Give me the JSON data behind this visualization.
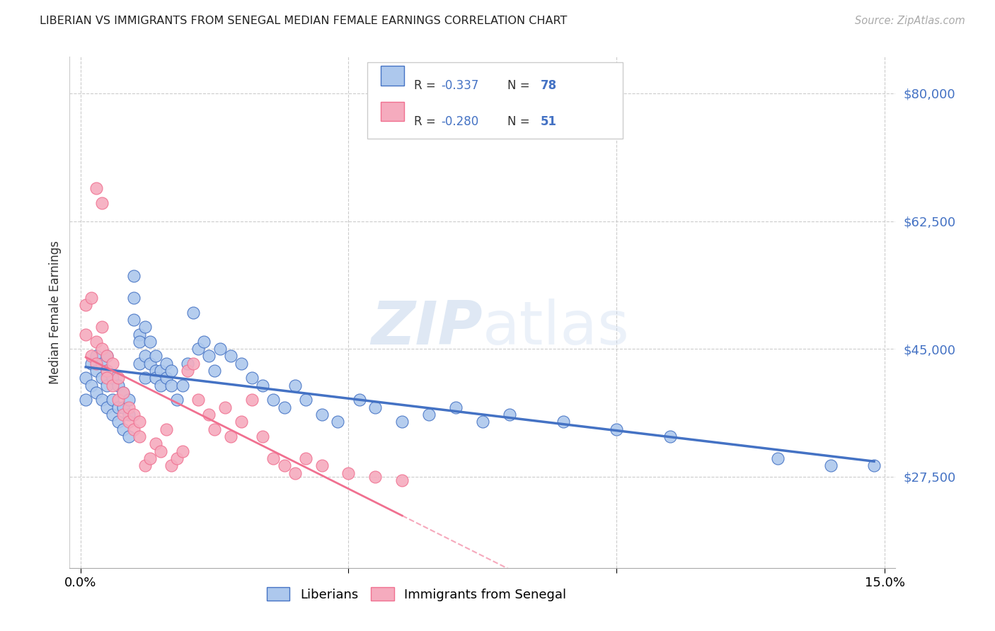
{
  "title": "LIBERIAN VS IMMIGRANTS FROM SENEGAL MEDIAN FEMALE EARNINGS CORRELATION CHART",
  "source": "Source: ZipAtlas.com",
  "ylabel": "Median Female Earnings",
  "xlim": [
    -0.002,
    0.152
  ],
  "ylim": [
    15000,
    85000
  ],
  "yticks": [
    27500,
    45000,
    62500,
    80000
  ],
  "ytick_labels": [
    "$27,500",
    "$45,000",
    "$62,500",
    "$80,000"
  ],
  "xticks": [
    0.0,
    0.05,
    0.1,
    0.15
  ],
  "xtick_labels": [
    "0.0%",
    "",
    "",
    "15.0%"
  ],
  "legend_labels": [
    "Liberians",
    "Immigrants from Senegal"
  ],
  "liberian_color": "#adc8ed",
  "senegal_color": "#f5abbe",
  "liberian_line_color": "#4472c4",
  "senegal_line_color": "#f07090",
  "R_liberian": "-0.337",
  "N_liberian": "78",
  "R_senegal": "-0.280",
  "N_senegal": "51",
  "watermark_zip": "ZIP",
  "watermark_atlas": "atlas",
  "liberian_x": [
    0.001,
    0.001,
    0.002,
    0.002,
    0.003,
    0.003,
    0.003,
    0.004,
    0.004,
    0.004,
    0.005,
    0.005,
    0.005,
    0.005,
    0.006,
    0.006,
    0.006,
    0.007,
    0.007,
    0.007,
    0.008,
    0.008,
    0.008,
    0.009,
    0.009,
    0.009,
    0.01,
    0.01,
    0.01,
    0.011,
    0.011,
    0.011,
    0.012,
    0.012,
    0.012,
    0.013,
    0.013,
    0.014,
    0.014,
    0.014,
    0.015,
    0.015,
    0.016,
    0.016,
    0.017,
    0.017,
    0.018,
    0.019,
    0.02,
    0.021,
    0.022,
    0.023,
    0.024,
    0.025,
    0.026,
    0.028,
    0.03,
    0.032,
    0.034,
    0.036,
    0.038,
    0.04,
    0.042,
    0.045,
    0.048,
    0.052,
    0.055,
    0.06,
    0.065,
    0.07,
    0.075,
    0.08,
    0.09,
    0.1,
    0.11,
    0.13,
    0.14,
    0.148
  ],
  "liberian_y": [
    41000,
    38000,
    43000,
    40000,
    39000,
    44000,
    42000,
    38000,
    41000,
    43000,
    37000,
    40000,
    42000,
    44000,
    36000,
    38000,
    41000,
    35000,
    37000,
    40000,
    34000,
    37000,
    39000,
    33000,
    36000,
    38000,
    55000,
    52000,
    49000,
    47000,
    43000,
    46000,
    44000,
    41000,
    48000,
    43000,
    46000,
    42000,
    44000,
    41000,
    40000,
    42000,
    43000,
    41000,
    40000,
    42000,
    38000,
    40000,
    43000,
    50000,
    45000,
    46000,
    44000,
    42000,
    45000,
    44000,
    43000,
    41000,
    40000,
    38000,
    37000,
    40000,
    38000,
    36000,
    35000,
    38000,
    37000,
    35000,
    36000,
    37000,
    35000,
    36000,
    35000,
    34000,
    33000,
    30000,
    29000,
    29000
  ],
  "senegal_x": [
    0.001,
    0.001,
    0.002,
    0.002,
    0.003,
    0.003,
    0.003,
    0.004,
    0.004,
    0.004,
    0.005,
    0.005,
    0.005,
    0.006,
    0.006,
    0.007,
    0.007,
    0.008,
    0.008,
    0.009,
    0.009,
    0.01,
    0.01,
    0.011,
    0.011,
    0.012,
    0.013,
    0.014,
    0.015,
    0.016,
    0.017,
    0.018,
    0.019,
    0.02,
    0.021,
    0.022,
    0.024,
    0.025,
    0.027,
    0.028,
    0.03,
    0.032,
    0.034,
    0.036,
    0.038,
    0.04,
    0.042,
    0.045,
    0.05,
    0.055,
    0.06
  ],
  "senegal_y": [
    47000,
    51000,
    44000,
    52000,
    43000,
    46000,
    67000,
    45000,
    48000,
    65000,
    42000,
    44000,
    41000,
    40000,
    43000,
    38000,
    41000,
    36000,
    39000,
    35000,
    37000,
    34000,
    36000,
    35000,
    33000,
    29000,
    30000,
    32000,
    31000,
    34000,
    29000,
    30000,
    31000,
    42000,
    43000,
    38000,
    36000,
    34000,
    37000,
    33000,
    35000,
    38000,
    33000,
    30000,
    29000,
    28000,
    30000,
    29000,
    28000,
    27500,
    27000
  ]
}
